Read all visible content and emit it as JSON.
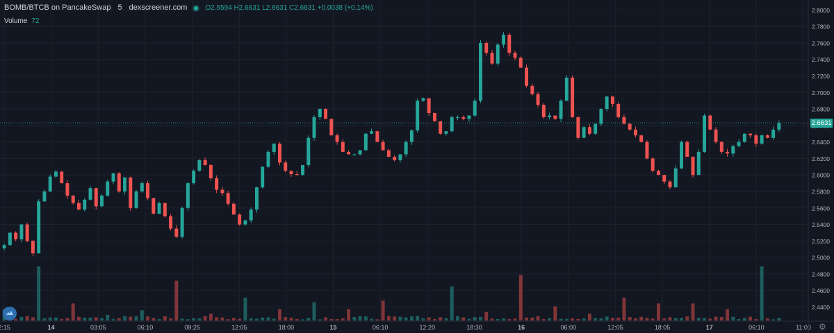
{
  "header": {
    "symbol": "BOMB/BTCB on PancakeSwap",
    "interval": "5",
    "source": "dexscreener.com",
    "open": "O2.6594",
    "high": "H2.6631",
    "low": "L2.6631",
    "close": "C2.6631",
    "change": "+0.0038 (+0.14%)",
    "volume_label": "Volume",
    "volume_value": "72"
  },
  "last_price": "2.6631",
  "colors": {
    "up": "#26a69a",
    "down": "#ef5350",
    "background": "#131722",
    "grid": "#1e222d",
    "text": "#b2b5be"
  },
  "icons": {
    "settings": "gear-icon",
    "logo": "dexscreener-logo-icon",
    "status": "live-dot-icon"
  },
  "chart_data": {
    "type": "candlestick",
    "title": "BOMB/BTCB on PancakeSwap",
    "y_ticks": [
      "2.8000",
      "2.7800",
      "2.7600",
      "2.7400",
      "2.7200",
      "2.7000",
      "2.6800",
      "2.6600",
      "2.6400",
      "2.6200",
      "2.6000",
      "2.5800",
      "2.5600",
      "2.5400",
      "2.5200",
      "2.5000",
      "2.4800",
      "2.4600",
      "2.4400"
    ],
    "ylim": [
      2.4345,
      2.8045
    ],
    "x_ticks": [
      "2:15",
      "14",
      "03:05",
      "06:10",
      "09:25",
      "12:05",
      "18:00",
      "15",
      "06:10",
      "12:20",
      "18:30",
      "16",
      "06:00",
      "12:05",
      "18:05",
      "17",
      "06:10",
      "11:00"
    ],
    "grid": true,
    "close_path": [
      2.515,
      2.53,
      2.522,
      2.54,
      2.52,
      2.505,
      2.568,
      2.58,
      2.598,
      2.604,
      2.59,
      2.575,
      2.566,
      2.558,
      2.57,
      2.584,
      2.562,
      2.575,
      2.592,
      2.602,
      2.58,
      2.597,
      2.56,
      2.58,
      2.59,
      2.572,
      2.553,
      2.566,
      2.55,
      2.535,
      2.525,
      2.56,
      2.59,
      2.605,
      2.618,
      2.612,
      2.596,
      2.582,
      2.578,
      2.565,
      2.552,
      2.54,
      2.545,
      2.558,
      2.585,
      2.61,
      2.628,
      2.638,
      2.615,
      2.605,
      2.601,
      2.6,
      2.612,
      2.645,
      2.67,
      2.68,
      2.668,
      2.648,
      2.64,
      2.628,
      2.625,
      2.625,
      2.63,
      2.65,
      2.653,
      2.64,
      2.63,
      2.622,
      2.618,
      2.625,
      2.64,
      2.654,
      2.69,
      2.693,
      2.675,
      2.665,
      2.65,
      2.653,
      2.67,
      2.67,
      2.668,
      2.672,
      2.69,
      2.76,
      2.748,
      2.735,
      2.758,
      2.77,
      2.748,
      2.742,
      2.73,
      2.708,
      2.698,
      2.685,
      2.67,
      2.672,
      2.668,
      2.69,
      2.718,
      2.67,
      2.645,
      2.658,
      2.65,
      2.662,
      2.68,
      2.695,
      2.686,
      2.67,
      2.662,
      2.655,
      2.648,
      2.64,
      2.62,
      2.605,
      2.6,
      2.592,
      2.585,
      2.608,
      2.64,
      2.622,
      2.6,
      2.628,
      2.672,
      2.655,
      2.64,
      2.628,
      2.626,
      2.635,
      2.64,
      2.65,
      2.648,
      2.638,
      2.648,
      2.645,
      2.655,
      2.663
    ],
    "volume_ylim": [
      0,
      100
    ],
    "volume_peaks": [
      20,
      95,
      30,
      10,
      18,
      70,
      12,
      40,
      20,
      32,
      20,
      35,
      8,
      60,
      15,
      80,
      25,
      12,
      40,
      30,
      30
    ]
  }
}
